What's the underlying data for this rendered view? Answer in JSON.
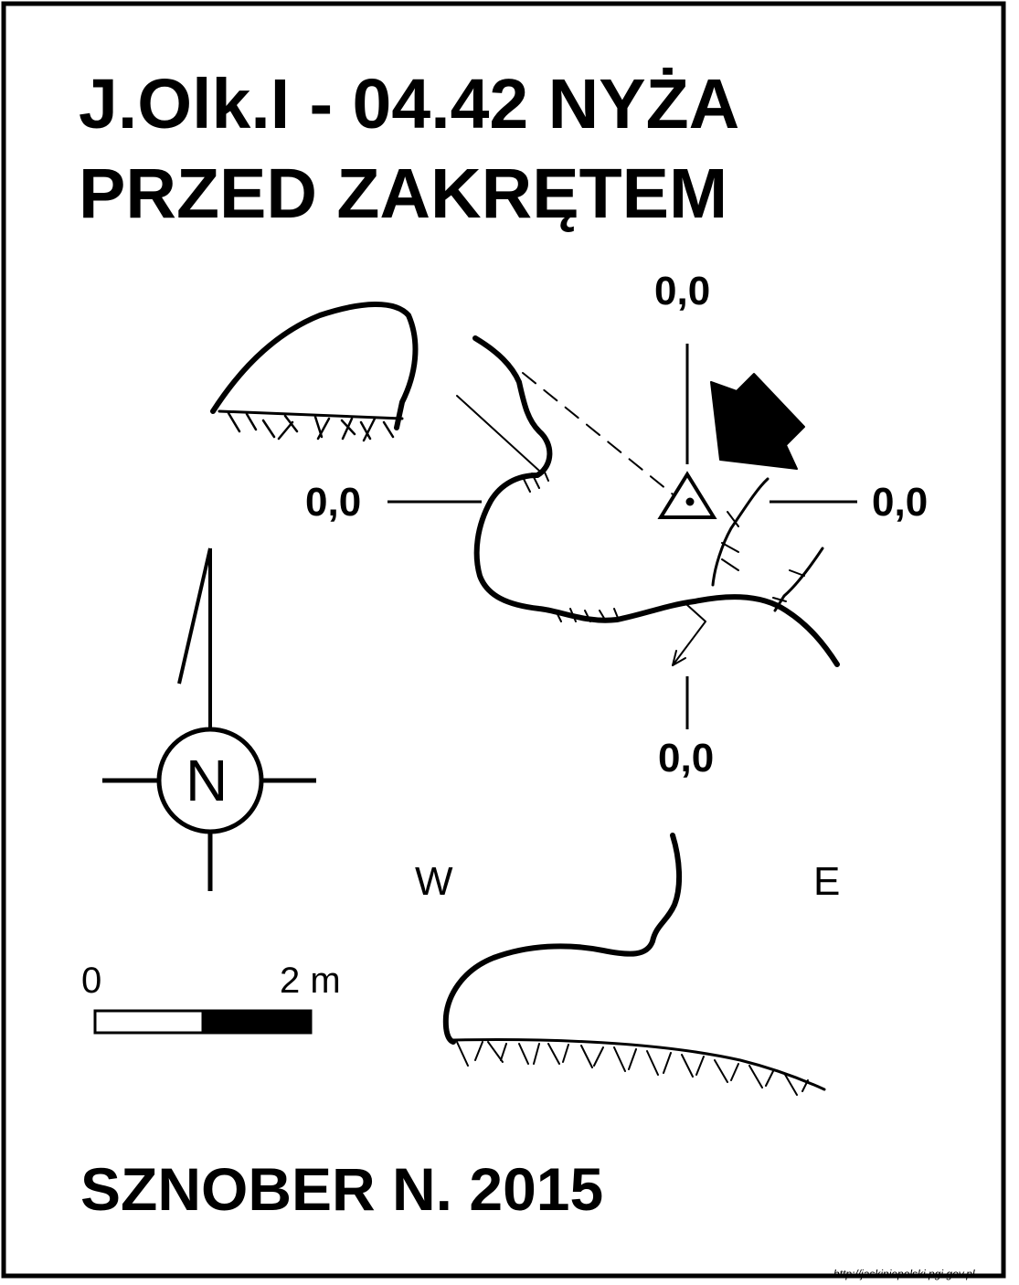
{
  "title": {
    "line1": "J.Olk.I - 04.42  NYŻA",
    "line2": "PRZED ZAKRĘTEM"
  },
  "author_line": "SZNOBER N.  2015",
  "levels": {
    "top": "0,0",
    "left": "0,0",
    "right": "0,0",
    "bottom": "0,0"
  },
  "profile": {
    "west_label": "W",
    "east_label": "E"
  },
  "scale_bar": {
    "start_label": "0",
    "end_label": "2 m"
  },
  "north_arrow": {
    "letter": "N"
  },
  "source_url": "http://jaskiniepolski.pgi.gov.pl",
  "icons": [
    "north-arrow-icon",
    "survey-point-icon",
    "entrance-arrow-icon",
    "slope-arrow-icon"
  ],
  "colors": {
    "ink": "#000000",
    "paper": "#ffffff"
  }
}
